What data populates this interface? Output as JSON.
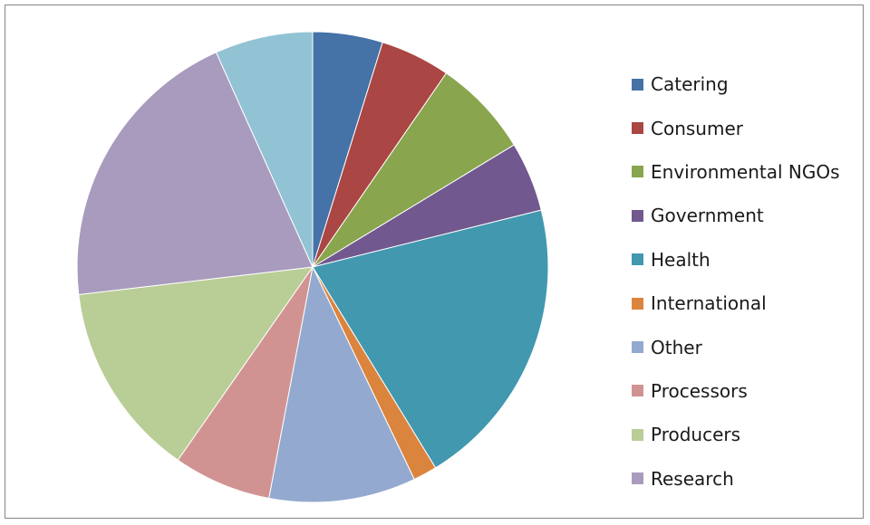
{
  "chart_data": {
    "type": "pie",
    "title": "",
    "start_angle_deg": 0,
    "direction": "clockwise",
    "legend_position": "right",
    "categories": [
      "Catering",
      "Consumer",
      "Environmental NGOs",
      "Government",
      "Health",
      "International",
      "Other",
      "Processors",
      "Producers",
      "Research",
      ""
    ],
    "values": [
      5,
      5,
      7,
      5,
      21,
      1.7,
      10.5,
      7,
      14,
      21,
      7
    ],
    "colors": [
      "#4572A7",
      "#AA4643",
      "#89A54E",
      "#71588F",
      "#4198AF",
      "#DB843D",
      "#93A9CF",
      "#D19392",
      "#B9CD96",
      "#A99BBD",
      "#92C3D5"
    ]
  }
}
